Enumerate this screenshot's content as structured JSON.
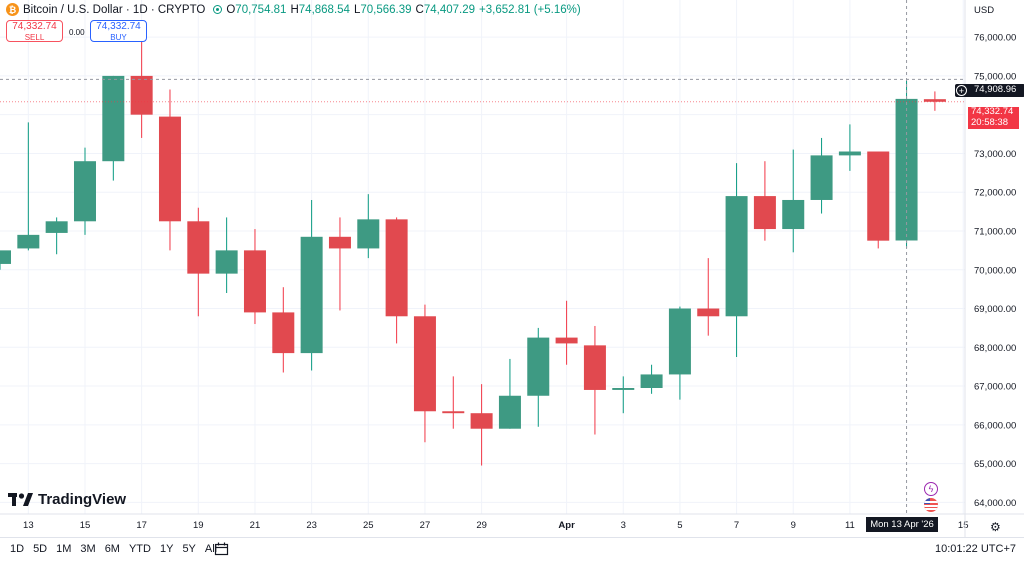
{
  "header": {
    "symbol": "Bitcoin / U.S. Dollar · 1D · CRYPTO",
    "o_label": "O",
    "o_value": "70,754.81",
    "h_label": "H",
    "h_value": "74,868.54",
    "l_label": "L",
    "l_value": "70,566.39",
    "c_label": "C",
    "c_value": "74,407.29",
    "change": "+3,652.81 (+5.16%)"
  },
  "trade": {
    "sell_price": "74,332.74",
    "sell_label": "SELL",
    "spread": "0.00",
    "buy_price": "74,332.74",
    "buy_label": "BUY"
  },
  "currency": "USD",
  "price_tags": {
    "crosshair": "74,908.96",
    "last_price": "74,332.74",
    "countdown": "20:58:38",
    "date": "Mon 13 Apr '26"
  },
  "logo_text": "TradingView",
  "timeframes": [
    "1D",
    "5D",
    "1M",
    "3M",
    "6M",
    "YTD",
    "1Y",
    "5Y",
    "All"
  ],
  "clock": "10:01:22 UTC+7",
  "colors": {
    "up": "#089981",
    "down": "#f23645"
  },
  "chart_data": {
    "type": "candlestick",
    "ylim": [
      63700,
      76700
    ],
    "y_ticks": [
      "76,000.00",
      "75,000.00",
      "74,000.00",
      "73,000.00",
      "72,000.00",
      "71,000.00",
      "70,000.00",
      "69,000.00",
      "68,000.00",
      "67,000.00",
      "66,000.00",
      "65,000.00",
      "64,000.00"
    ],
    "x_ticks": [
      "13",
      "15",
      "17",
      "19",
      "21",
      "23",
      "25",
      "27",
      "29",
      "Apr",
      "3",
      "5",
      "7",
      "9",
      "11",
      "15"
    ],
    "candles": [
      {
        "date": "Mar 12",
        "o": 70150,
        "h": 70450,
        "l": 70000,
        "c": 70500
      },
      {
        "date": "Mar 13",
        "o": 70550,
        "h": 73800,
        "l": 70500,
        "c": 70900
      },
      {
        "date": "Mar 14",
        "o": 70950,
        "h": 71350,
        "l": 70400,
        "c": 71250
      },
      {
        "date": "Mar 15",
        "o": 71250,
        "h": 73150,
        "l": 70900,
        "c": 72800
      },
      {
        "date": "Mar 16",
        "o": 72800,
        "h": 75000,
        "l": 72300,
        "c": 75000
      },
      {
        "date": "Mar 17",
        "o": 75000,
        "h": 76000,
        "l": 73400,
        "c": 74000
      },
      {
        "date": "Mar 18",
        "o": 73950,
        "h": 74650,
        "l": 70500,
        "c": 71250
      },
      {
        "date": "Mar 19",
        "o": 71250,
        "h": 71600,
        "l": 68800,
        "c": 69900
      },
      {
        "date": "Mar 20",
        "o": 69900,
        "h": 71350,
        "l": 69400,
        "c": 70500
      },
      {
        "date": "Mar 21",
        "o": 70500,
        "h": 71050,
        "l": 68600,
        "c": 68900
      },
      {
        "date": "Mar 22",
        "o": 68900,
        "h": 69550,
        "l": 67350,
        "c": 67850
      },
      {
        "date": "Mar 23",
        "o": 67850,
        "h": 71800,
        "l": 67400,
        "c": 70850
      },
      {
        "date": "Mar 24",
        "o": 70850,
        "h": 71350,
        "l": 68950,
        "c": 70550
      },
      {
        "date": "Mar 25",
        "o": 70550,
        "h": 71950,
        "l": 70300,
        "c": 71300
      },
      {
        "date": "Mar 26",
        "o": 71300,
        "h": 71350,
        "l": 68100,
        "c": 68800
      },
      {
        "date": "Mar 27",
        "o": 68800,
        "h": 69100,
        "l": 65550,
        "c": 66350
      },
      {
        "date": "Mar 28",
        "o": 66350,
        "h": 67250,
        "l": 65900,
        "c": 66300
      },
      {
        "date": "Mar 29",
        "o": 66300,
        "h": 67050,
        "l": 64950,
        "c": 65900
      },
      {
        "date": "Mar 30",
        "o": 65900,
        "h": 67700,
        "l": 65900,
        "c": 66750
      },
      {
        "date": "Mar 31",
        "o": 66750,
        "h": 68500,
        "l": 65950,
        "c": 68250
      },
      {
        "date": "Apr 1",
        "o": 68250,
        "h": 69200,
        "l": 67550,
        "c": 68100
      },
      {
        "date": "Apr 2",
        "o": 68050,
        "h": 68550,
        "l": 65750,
        "c": 66900
      },
      {
        "date": "Apr 3",
        "o": 66900,
        "h": 67250,
        "l": 66300,
        "c": 66950
      },
      {
        "date": "Apr 4",
        "o": 66950,
        "h": 67550,
        "l": 66800,
        "c": 67300
      },
      {
        "date": "Apr 5",
        "o": 67300,
        "h": 69050,
        "l": 66650,
        "c": 69000
      },
      {
        "date": "Apr 6",
        "o": 69000,
        "h": 70300,
        "l": 68300,
        "c": 68800
      },
      {
        "date": "Apr 7",
        "o": 68800,
        "h": 72750,
        "l": 67750,
        "c": 71900
      },
      {
        "date": "Apr 8",
        "o": 71900,
        "h": 72800,
        "l": 70750,
        "c": 71050
      },
      {
        "date": "Apr 9",
        "o": 71050,
        "h": 73100,
        "l": 70450,
        "c": 71800
      },
      {
        "date": "Apr 10",
        "o": 71800,
        "h": 73400,
        "l": 71450,
        "c": 72950
      },
      {
        "date": "Apr 11",
        "o": 72950,
        "h": 73750,
        "l": 72550,
        "c": 73050
      },
      {
        "date": "Apr 12",
        "o": 73050,
        "h": 73050,
        "l": 70550,
        "c": 70750
      },
      {
        "date": "Apr 13",
        "o": 70754.81,
        "h": 74868.54,
        "l": 70566.39,
        "c": 74407.29
      },
      {
        "date": "Apr 14",
        "o": 74400,
        "h": 74600,
        "l": 74100,
        "c": 74332.74
      }
    ]
  }
}
